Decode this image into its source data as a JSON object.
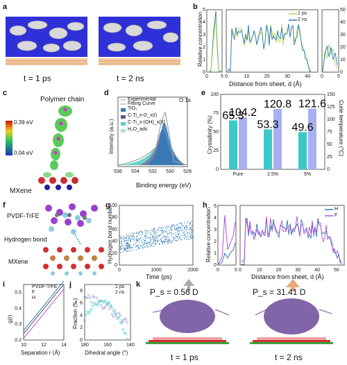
{
  "panels": {
    "a": {
      "letter": "a",
      "time_left": "t = 1 ps",
      "time_right": "t = 2 ns"
    },
    "b": {
      "letter": "b",
      "ylabel": "Relative concentration",
      "xlabel": "Distance from sheet, d (Å)",
      "legend": [
        "1 ps",
        "2 ns"
      ]
    },
    "c": {
      "letter": "c",
      "top_label": "Polymer chain",
      "bottom_label": "MXene",
      "scale_max": "0.39 eV",
      "scale_min": "0.04 eV"
    },
    "d": {
      "letter": "d",
      "title": "O 1s",
      "xlabel": "Binding energy (eV)",
      "ylabel": "Intensity (a.u.)",
      "legend": [
        "Experimental",
        "Fitting Curve",
        "TiO₂",
        "C-Ti_x-O_x(I)",
        "C-Ti_x-(OH)_x(II)",
        "H₂O_ads"
      ]
    },
    "e": {
      "letter": "e",
      "ylabel_left": "Crystallinity (%)",
      "ylabel_right": "Curie temperature (°C)"
    },
    "f": {
      "letter": "f",
      "label_top": "PVDF-TrFE",
      "label_mid": "Hydrogen bond",
      "label_bottom": "MXene"
    },
    "g": {
      "letter": "g",
      "xlabel": "Time (ps)",
      "ylabel": "Hydrogen bond number"
    },
    "h": {
      "letter": "h",
      "ylabel": "Relative concentration",
      "xlabel": "Distance from sheet, d (Å)",
      "legend": [
        "H",
        "F"
      ]
    },
    "i": {
      "letter": "i",
      "xlabel": "Separation r (Å)",
      "ylabel": "g(r)",
      "legend": [
        "PVDF-TrFE",
        "F",
        "H"
      ]
    },
    "j": {
      "letter": "j",
      "xlabel": "Dihedral angle (°)",
      "ylabel": "Fraction (‰)",
      "legend": [
        "1 ps",
        "2 ns"
      ]
    },
    "k": {
      "letter": "k",
      "ps_left": "P_s = 0.56 D",
      "ps_right": "P_s = 31.41 D",
      "time_left": "t = 1 ps",
      "time_right": "t = 2 ns"
    }
  },
  "colors": {
    "blue_surface": "#2f2fd8",
    "teal": "#3cc8c8",
    "lavender": "#a9b0f0",
    "purple": "#b04fd8",
    "steelblue": "#2f78b8",
    "lightgreen": "#a8d858"
  },
  "chart_data": [
    {
      "id": "e",
      "type": "bar",
      "categories": [
        "Pure",
        "2.5%",
        "5%"
      ],
      "series": [
        {
          "name": "Crystallinity",
          "values": [
            65.3,
            53.3,
            49.6
          ]
        },
        {
          "name": "Curie temperature",
          "values": [
            104.2,
            120.8,
            121.6
          ]
        }
      ],
      "ylim_left": [
        0,
        100
      ],
      "ylim_right": [
        0,
        150
      ],
      "yticks_left": [
        "0",
        "25",
        "50",
        "75",
        "100"
      ],
      "yticks_right": [
        "0",
        "25",
        "50",
        "75",
        "100",
        "125",
        "150"
      ]
    },
    {
      "id": "b",
      "type": "line",
      "xticks_mid": [
        "0",
        "10",
        "20",
        "30",
        "40"
      ],
      "xticks_left": [
        "0",
        "5"
      ],
      "xticks_right": [
        "0",
        "5"
      ],
      "yticks_left": [
        "0",
        "1",
        "2",
        "3",
        "4",
        "5"
      ],
      "yticks_right": [
        "0",
        "10",
        "20",
        "30",
        "40",
        "50"
      ]
    },
    {
      "id": "d",
      "type": "area",
      "xticks": [
        "536",
        "534",
        "532",
        "530",
        "528"
      ],
      "peaks": [
        533.2,
        531.2,
        529.9,
        529.4
      ]
    },
    {
      "id": "g",
      "type": "scatter",
      "xticks": [
        "0",
        "1000",
        "2000"
      ],
      "yticks": [
        "0",
        "20",
        "40",
        "60",
        "80",
        "100"
      ],
      "xlim": [
        0,
        2000
      ],
      "ylim": [
        0,
        100
      ]
    },
    {
      "id": "h",
      "type": "line",
      "xticks_mid": [
        "0",
        "10",
        "20",
        "30",
        "40",
        "50"
      ],
      "xticks_left": [
        "0",
        "5"
      ],
      "yticks_left": [
        "0",
        "1",
        "2",
        "3",
        "4",
        "5"
      ]
    },
    {
      "id": "i",
      "type": "line",
      "xticks": [
        "10",
        "12",
        "14"
      ],
      "yticks": [
        "0.2",
        "0.3",
        "0.4",
        "0.5"
      ],
      "xlim": [
        10,
        14
      ],
      "ylim": [
        0.2,
        0.55
      ]
    },
    {
      "id": "j",
      "type": "scatter",
      "xticks": [
        "180",
        "160",
        "140"
      ],
      "yticks": [
        "0",
        "2",
        "4",
        "6",
        "8"
      ],
      "xlim": [
        180,
        140
      ],
      "ylim": [
        0,
        9
      ]
    }
  ]
}
